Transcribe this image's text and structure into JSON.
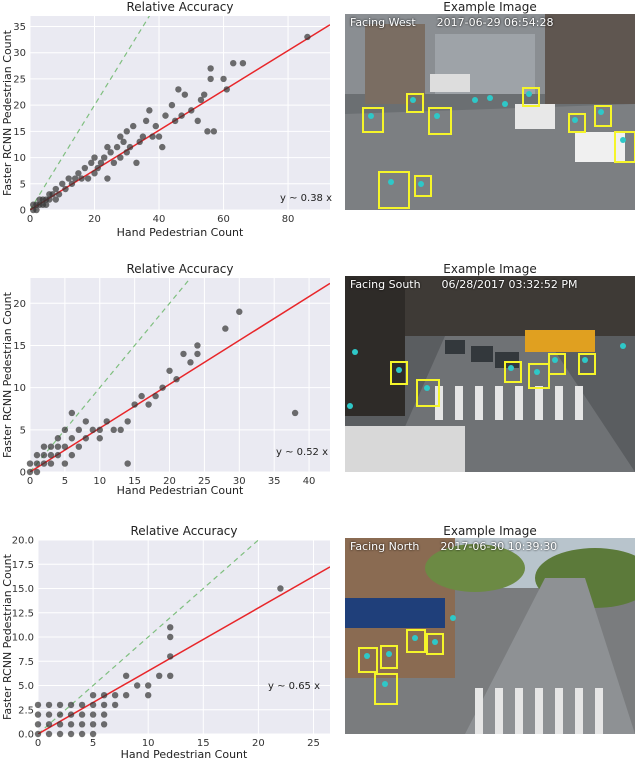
{
  "chart_data": [
    {
      "type": "scatter",
      "title": "Relative Accuracy",
      "xlabel": "Hand Pedestrian Count",
      "ylabel": "Faster RCNN Pedestrian Count",
      "xlim": [
        0,
        93
      ],
      "ylim": [
        0,
        37
      ],
      "xticks": [
        "0",
        "20",
        "40",
        "60",
        "80"
      ],
      "xtick_values": [
        0,
        20,
        40,
        60,
        80
      ],
      "yticks": [
        "0",
        "5",
        "10",
        "15",
        "20",
        "25",
        "30",
        "35"
      ],
      "ytick_values": [
        0,
        5,
        10,
        15,
        20,
        25,
        30,
        35
      ],
      "fit_label": "y ~ 0.38 x",
      "fit_slope": 0.38,
      "identity_line": true,
      "grid": true,
      "points": [
        [
          1,
          0
        ],
        [
          1,
          1
        ],
        [
          2,
          0
        ],
        [
          2,
          1
        ],
        [
          3,
          1
        ],
        [
          3,
          2
        ],
        [
          4,
          1
        ],
        [
          4,
          2
        ],
        [
          5,
          1
        ],
        [
          5,
          2
        ],
        [
          6,
          2
        ],
        [
          6,
          3
        ],
        [
          7,
          3
        ],
        [
          8,
          2
        ],
        [
          8,
          4
        ],
        [
          9,
          3
        ],
        [
          10,
          5
        ],
        [
          11,
          4
        ],
        [
          12,
          6
        ],
        [
          13,
          5
        ],
        [
          14,
          6
        ],
        [
          15,
          7
        ],
        [
          16,
          6
        ],
        [
          17,
          8
        ],
        [
          18,
          6
        ],
        [
          19,
          9
        ],
        [
          20,
          7
        ],
        [
          20,
          10
        ],
        [
          21,
          8
        ],
        [
          22,
          9
        ],
        [
          23,
          10
        ],
        [
          24,
          6
        ],
        [
          24,
          12
        ],
        [
          25,
          11
        ],
        [
          26,
          9
        ],
        [
          27,
          12
        ],
        [
          28,
          10
        ],
        [
          28,
          14
        ],
        [
          29,
          13
        ],
        [
          30,
          15
        ],
        [
          30,
          11
        ],
        [
          31,
          12
        ],
        [
          32,
          16
        ],
        [
          33,
          9
        ],
        [
          34,
          13
        ],
        [
          35,
          14
        ],
        [
          36,
          17
        ],
        [
          37,
          19
        ],
        [
          38,
          14
        ],
        [
          39,
          16
        ],
        [
          40,
          14
        ],
        [
          41,
          12
        ],
        [
          42,
          18
        ],
        [
          44,
          20
        ],
        [
          45,
          17
        ],
        [
          46,
          23
        ],
        [
          47,
          18
        ],
        [
          48,
          22
        ],
        [
          50,
          19
        ],
        [
          52,
          17
        ],
        [
          53,
          21
        ],
        [
          54,
          22
        ],
        [
          55,
          15
        ],
        [
          56,
          25
        ],
        [
          56,
          27
        ],
        [
          57,
          15
        ],
        [
          60,
          25
        ],
        [
          61,
          23
        ],
        [
          63,
          28
        ],
        [
          66,
          28
        ],
        [
          86,
          33
        ]
      ]
    },
    {
      "type": "scatter",
      "title": "Relative Accuracy",
      "xlabel": "Hand Pedestrian Count",
      "ylabel": "Faster RCNN Pedestrian Count",
      "xlim": [
        0,
        43
      ],
      "ylim": [
        0,
        23
      ],
      "xticks": [
        "0",
        "5",
        "10",
        "15",
        "20",
        "25",
        "30",
        "35",
        "40"
      ],
      "xtick_values": [
        0,
        5,
        10,
        15,
        20,
        25,
        30,
        35,
        40
      ],
      "yticks": [
        "0",
        "5",
        "10",
        "15",
        "20"
      ],
      "ytick_values": [
        0,
        5,
        10,
        15,
        20
      ],
      "fit_label": "y ~ 0.52 x",
      "fit_slope": 0.52,
      "identity_line": true,
      "grid": true,
      "points": [
        [
          0,
          0
        ],
        [
          0,
          1
        ],
        [
          1,
          0
        ],
        [
          1,
          1
        ],
        [
          1,
          2
        ],
        [
          2,
          1
        ],
        [
          2,
          2
        ],
        [
          2,
          3
        ],
        [
          3,
          1
        ],
        [
          3,
          2
        ],
        [
          3,
          3
        ],
        [
          4,
          2
        ],
        [
          4,
          3
        ],
        [
          4,
          4
        ],
        [
          5,
          1
        ],
        [
          5,
          3
        ],
        [
          5,
          5
        ],
        [
          6,
          2
        ],
        [
          6,
          4
        ],
        [
          6,
          7
        ],
        [
          7,
          3
        ],
        [
          7,
          5
        ],
        [
          8,
          4
        ],
        [
          8,
          6
        ],
        [
          9,
          5
        ],
        [
          10,
          4
        ],
        [
          10,
          5
        ],
        [
          11,
          6
        ],
        [
          12,
          5
        ],
        [
          13,
          5
        ],
        [
          14,
          1
        ],
        [
          14,
          6
        ],
        [
          15,
          8
        ],
        [
          16,
          9
        ],
        [
          17,
          8
        ],
        [
          18,
          9
        ],
        [
          19,
          10
        ],
        [
          20,
          12
        ],
        [
          21,
          11
        ],
        [
          22,
          14
        ],
        [
          23,
          13
        ],
        [
          24,
          14
        ],
        [
          24,
          15
        ],
        [
          28,
          17
        ],
        [
          30,
          19
        ],
        [
          38,
          7
        ]
      ]
    },
    {
      "type": "scatter",
      "title": "Relative Accuracy",
      "xlabel": "Hand Pedestrian Count",
      "ylabel": "Faster RCNN Pedestrian Count",
      "xlim": [
        0,
        26.5
      ],
      "ylim": [
        0,
        20
      ],
      "xticks": [
        "0",
        "5",
        "10",
        "15",
        "20",
        "25"
      ],
      "xtick_values": [
        0,
        5,
        10,
        15,
        20,
        25
      ],
      "yticks": [
        "0.0",
        "2.5",
        "5.0",
        "7.5",
        "10.0",
        "12.5",
        "15.0",
        "17.5",
        "20.0"
      ],
      "ytick_values": [
        0,
        2.5,
        5,
        7.5,
        10,
        12.5,
        15,
        17.5,
        20
      ],
      "fit_label": "y ~ 0.65 x",
      "fit_slope": 0.65,
      "identity_line": true,
      "grid": true,
      "points": [
        [
          0,
          0
        ],
        [
          0,
          1
        ],
        [
          0,
          2
        ],
        [
          0,
          3
        ],
        [
          1,
          0
        ],
        [
          1,
          1
        ],
        [
          1,
          2
        ],
        [
          1,
          3
        ],
        [
          2,
          0
        ],
        [
          2,
          1
        ],
        [
          2,
          2
        ],
        [
          2,
          3
        ],
        [
          3,
          0
        ],
        [
          3,
          1
        ],
        [
          3,
          2
        ],
        [
          3,
          3
        ],
        [
          4,
          0
        ],
        [
          4,
          1
        ],
        [
          4,
          2
        ],
        [
          4,
          3
        ],
        [
          5,
          0
        ],
        [
          5,
          1
        ],
        [
          5,
          2
        ],
        [
          5,
          3
        ],
        [
          5,
          4
        ],
        [
          6,
          1
        ],
        [
          6,
          2
        ],
        [
          6,
          3
        ],
        [
          6,
          4
        ],
        [
          7,
          3
        ],
        [
          7,
          4
        ],
        [
          8,
          4
        ],
        [
          8,
          6
        ],
        [
          9,
          5
        ],
        [
          10,
          4
        ],
        [
          10,
          5
        ],
        [
          11,
          6
        ],
        [
          12,
          6
        ],
        [
          12,
          8
        ],
        [
          12,
          10
        ],
        [
          12,
          11
        ],
        [
          22,
          15
        ]
      ]
    }
  ],
  "examples": [
    {
      "title": "Example Image",
      "stamp": "Facing West      2017-06-29 06:54:28"
    },
    {
      "title": "Example Image",
      "stamp": "Facing South      06/28/2017 03:32:52 PM"
    },
    {
      "title": "Example Image",
      "stamp": "Facing North      2017-06-30 10:39:30"
    }
  ],
  "colors": {
    "plot_bg": "#eaeaf2",
    "grid": "#ffffff",
    "point": "#333333",
    "fit_line": "#e8262a",
    "identity_line": "#7fbf7f",
    "box": "#f5f52a",
    "dot": "#2ec8c8"
  }
}
